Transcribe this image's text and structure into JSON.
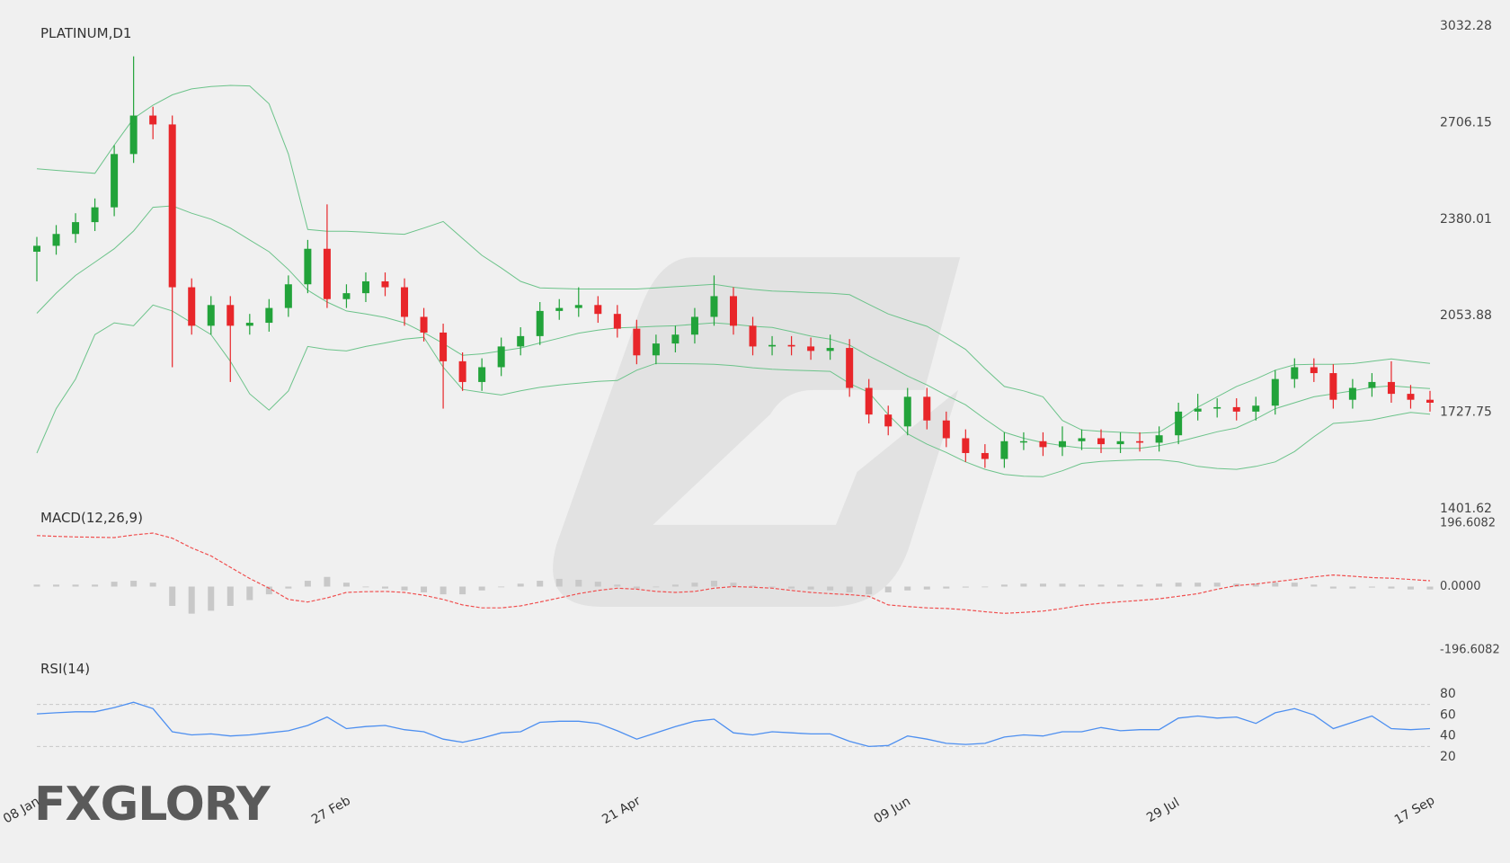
{
  "chart_data": [
    {
      "type": "candlestick",
      "title": "PLATINUM,D1",
      "logo": "FXGLORY",
      "categories": [
        "08 Jan",
        null,
        null,
        null,
        null,
        null,
        null,
        null,
        null,
        null,
        null,
        null,
        null,
        null,
        null,
        null,
        "27 Feb",
        null,
        null,
        null,
        null,
        null,
        null,
        null,
        null,
        null,
        null,
        null,
        null,
        null,
        null,
        "21 Apr",
        null,
        null,
        null,
        null,
        null,
        null,
        null,
        null,
        null,
        null,
        null,
        null,
        null,
        "09 Jun",
        null,
        null,
        null,
        null,
        null,
        null,
        null,
        null,
        null,
        null,
        null,
        null,
        null,
        "29 Jul",
        null,
        null,
        null,
        null,
        null,
        null,
        null,
        null,
        null,
        null,
        null,
        null,
        "17 Sep"
      ],
      "open": [
        2270,
        2290,
        2330,
        2370,
        2420,
        2600,
        2730,
        2700,
        2150,
        2020,
        2090,
        2020,
        2030,
        2080,
        2160,
        2280,
        2110,
        2130,
        2170,
        2150,
        2050,
        1997,
        1900,
        1830,
        1880,
        1950,
        1985,
        2070,
        2080,
        2090,
        2060,
        2010,
        1920,
        1960,
        1990,
        2050,
        2120,
        2020,
        1950,
        1955,
        1950,
        1935,
        1945,
        1810,
        1720,
        1680,
        1780,
        1700,
        1640,
        1590,
        1570,
        1630,
        1630,
        1610,
        1630,
        1640,
        1620,
        1630,
        1625,
        1650,
        1730,
        1740,
        1745,
        1730,
        1750,
        1840,
        1880,
        1860,
        1770,
        1810,
        1830,
        1790,
        1770
      ],
      "high": [
        2320,
        2360,
        2400,
        2450,
        2630,
        2930,
        2760,
        2730,
        2180,
        2120,
        2120,
        2060,
        2110,
        2190,
        2310,
        2430,
        2160,
        2200,
        2200,
        2180,
        2080,
        2027,
        1930,
        1910,
        1980,
        2015,
        2100,
        2110,
        2150,
        2120,
        2090,
        2040,
        1990,
        2020,
        2080,
        2190,
        2150,
        2050,
        1985,
        1985,
        1980,
        1990,
        1975,
        1840,
        1750,
        1810,
        1810,
        1730,
        1670,
        1620,
        1660,
        1660,
        1660,
        1680,
        1670,
        1670,
        1660,
        1660,
        1680,
        1760,
        1790,
        1775,
        1775,
        1780,
        1870,
        1910,
        1910,
        1890,
        1840,
        1860,
        1900,
        1820,
        1800
      ],
      "low": [
        2170,
        2260,
        2300,
        2340,
        2390,
        2570,
        2650,
        1880,
        1990,
        1990,
        1830,
        1990,
        2000,
        2050,
        2130,
        2080,
        2080,
        2100,
        2120,
        2020,
        1967,
        1740,
        1800,
        1800,
        1850,
        1920,
        1955,
        2040,
        2050,
        2030,
        1980,
        1890,
        1890,
        1930,
        1960,
        2020,
        1990,
        1920,
        1920,
        1920,
        1905,
        1905,
        1780,
        1690,
        1650,
        1650,
        1670,
        1610,
        1560,
        1540,
        1540,
        1600,
        1580,
        1580,
        1600,
        1590,
        1590,
        1595,
        1595,
        1620,
        1700,
        1710,
        1700,
        1700,
        1720,
        1810,
        1830,
        1740,
        1740,
        1780,
        1760,
        1740,
        1730
      ],
      "close": [
        2290,
        2330,
        2370,
        2420,
        2600,
        2730,
        2700,
        2150,
        2020,
        2090,
        2020,
        2030,
        2080,
        2160,
        2280,
        2110,
        2130,
        2170,
        2150,
        2050,
        1997,
        1900,
        1830,
        1880,
        1950,
        1985,
        2070,
        2080,
        2090,
        2060,
        2010,
        1920,
        1960,
        1990,
        2050,
        2120,
        2020,
        1950,
        1955,
        1950,
        1935,
        1945,
        1810,
        1720,
        1680,
        1780,
        1700,
        1640,
        1590,
        1570,
        1630,
        1630,
        1610,
        1630,
        1640,
        1620,
        1630,
        1625,
        1650,
        1730,
        1740,
        1745,
        1730,
        1750,
        1840,
        1880,
        1860,
        1770,
        1810,
        1830,
        1790,
        1770,
        1760
      ],
      "up_color": "#22a33a",
      "down_color": "#e8262a",
      "bollinger": {
        "color": "#6cc38a",
        "upper": [
          2550,
          2545,
          2540,
          2535,
          2630,
          2720,
          2765,
          2800,
          2820,
          2828,
          2832,
          2830,
          2770,
          2600,
          2345,
          2339,
          2339,
          2336,
          2332,
          2329,
          2350,
          2372,
          2315,
          2258,
          2215,
          2170,
          2148,
          2146,
          2144,
          2144,
          2144,
          2144,
          2148,
          2152,
          2156,
          2160,
          2150,
          2143,
          2137,
          2135,
          2132,
          2130,
          2125,
          2092,
          2060,
          2038,
          2018,
          1980,
          1940,
          1875,
          1815,
          1800,
          1780,
          1700,
          1668,
          1663,
          1660,
          1657,
          1660,
          1700,
          1745,
          1780,
          1815,
          1840,
          1870,
          1888,
          1890,
          1890,
          1892,
          1900,
          1908,
          1900,
          1893
        ],
        "middle": [
          2062,
          2130,
          2190,
          2235,
          2280,
          2340,
          2420,
          2425,
          2400,
          2380,
          2350,
          2310,
          2270,
          2210,
          2140,
          2100,
          2070,
          2060,
          2048,
          2030,
          1997,
          1960,
          1920,
          1925,
          1935,
          1945,
          1962,
          1978,
          1995,
          2005,
          2013,
          2015,
          2018,
          2020,
          2025,
          2030,
          2025,
          2018,
          2014,
          2000,
          1985,
          1975,
          1955,
          1918,
          1885,
          1850,
          1820,
          1785,
          1753,
          1705,
          1660,
          1640,
          1625,
          1615,
          1607,
          1606,
          1606,
          1606,
          1615,
          1628,
          1645,
          1662,
          1675,
          1705,
          1740,
          1760,
          1780,
          1790,
          1800,
          1812,
          1817,
          1812,
          1808
        ],
        "lower": [
          1590,
          1740,
          1840,
          1990,
          2030,
          2020,
          2090,
          2070,
          2030,
          1990,
          1900,
          1790,
          1735,
          1800,
          1950,
          1940,
          1935,
          1950,
          1962,
          1975,
          1981,
          1880,
          1805,
          1795,
          1786,
          1800,
          1812,
          1820,
          1826,
          1832,
          1835,
          1870,
          1893,
          1892,
          1891,
          1890,
          1885,
          1878,
          1873,
          1870,
          1868,
          1866,
          1825,
          1795,
          1720,
          1655,
          1620,
          1592,
          1560,
          1535,
          1518,
          1512,
          1510,
          1530,
          1555,
          1562,
          1565,
          1567,
          1567,
          1560,
          1545,
          1538,
          1535,
          1545,
          1560,
          1595,
          1645,
          1690,
          1695,
          1702,
          1715,
          1727,
          1721
        ]
      },
      "ylim": [
        1401.62,
        3032.28
      ],
      "yticks": [
        3032.28,
        2706.15,
        2380.01,
        2053.88,
        1727.75,
        1401.62
      ]
    },
    {
      "type": "macd",
      "title": "MACD(12,26,9)",
      "histogram": {
        "color": "#c8c8c8",
        "values": [
          6,
          6,
          6,
          6,
          15,
          18,
          12,
          -60,
          -84,
          -75,
          -60,
          -42,
          -24,
          -6,
          18,
          30,
          12,
          0,
          -6,
          -12,
          -18,
          -24,
          -24,
          -12,
          0,
          9,
          18,
          24,
          21,
          15,
          6,
          -6,
          0,
          6,
          12,
          18,
          12,
          3,
          -3,
          -6,
          -9,
          -12,
          -18,
          -24,
          -18,
          -12,
          -9,
          -6,
          -3,
          0,
          6,
          9,
          9,
          9,
          6,
          6,
          6,
          6,
          9,
          12,
          12,
          12,
          9,
          9,
          12,
          12,
          6,
          -6,
          -6,
          -3,
          -6,
          -9,
          -9
        ]
      },
      "signal": {
        "color": "#f05050",
        "values": [
          158,
          156,
          154,
          153,
          152,
          160,
          166,
          150,
          120,
          95,
          60,
          25,
          -5,
          -40,
          -48,
          -35,
          -18,
          -16,
          -15,
          -18,
          -27,
          -40,
          -57,
          -66,
          -66,
          -60,
          -48,
          -35,
          -22,
          -12,
          -5,
          -8,
          -15,
          -18,
          -15,
          -5,
          0,
          -2,
          -5,
          -12,
          -18,
          -22,
          -25,
          -30,
          -57,
          -62,
          -66,
          -68,
          -72,
          -78,
          -83,
          -80,
          -76,
          -68,
          -58,
          -52,
          -47,
          -43,
          -38,
          -30,
          -22,
          -8,
          3,
          8,
          15,
          22,
          30,
          36,
          32,
          28,
          26,
          22,
          18
        ]
      },
      "ylim": [
        -196.6082,
        196.6082
      ],
      "yticks": [
        196.6082,
        {
          "value": 0,
          "label": "0.0000"
        },
        -196.6082
      ]
    },
    {
      "type": "line",
      "title": "RSI(14)",
      "color": "#4d8ff0",
      "values": [
        61,
        62,
        63,
        63,
        67,
        72,
        66,
        44,
        41,
        42,
        40,
        41,
        43,
        45,
        50,
        58,
        47,
        49,
        50,
        46,
        44,
        37,
        34,
        38,
        43,
        44,
        53,
        54,
        54,
        52,
        45,
        37,
        43,
        49,
        54,
        56,
        43,
        41,
        44,
        43,
        42,
        42,
        35,
        30,
        31,
        40,
        37,
        33,
        32,
        33,
        39,
        41,
        40,
        44,
        44,
        48,
        45,
        46,
        46,
        57,
        59,
        57,
        58,
        52,
        62,
        66,
        60,
        47,
        53,
        59,
        47,
        46,
        47
      ],
      "levels": [
        70,
        30
      ],
      "ylim": [
        15,
        85
      ],
      "yticks": [
        80,
        60,
        40,
        20
      ]
    }
  ]
}
